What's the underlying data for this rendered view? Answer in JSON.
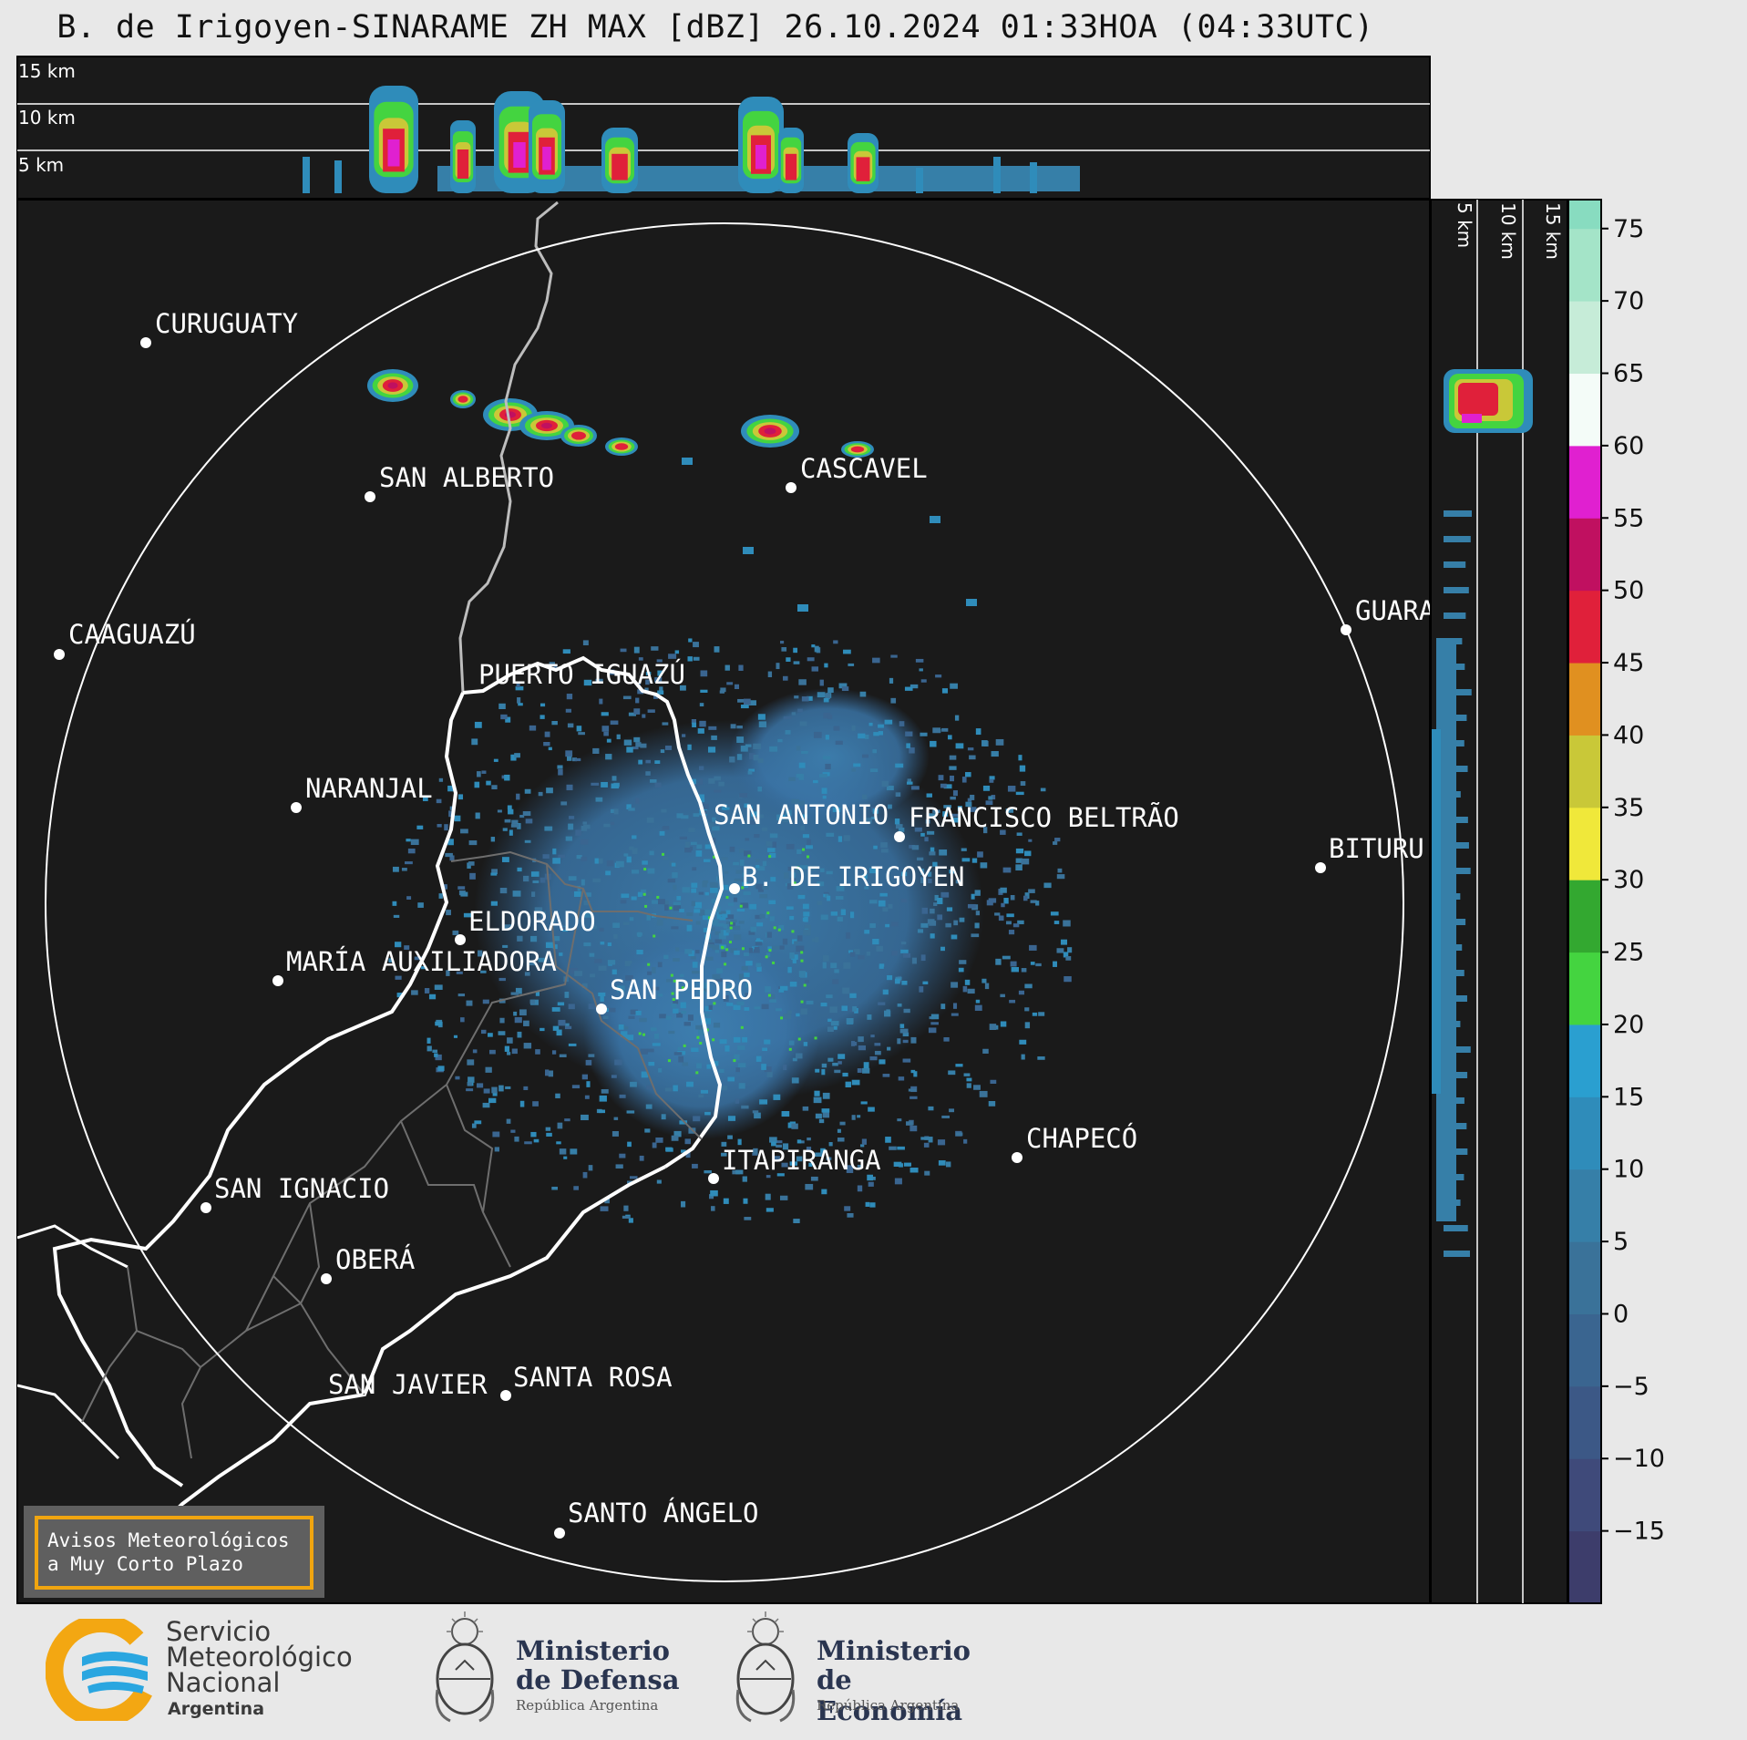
{
  "title": "B. de Irigoyen-SINARAME ZH MAX [dBZ] 26.10.2024 01:33HOA (04:33UTC)",
  "top_panel": {
    "height_labels": [
      "15 km",
      "10 km",
      "5 km"
    ]
  },
  "side_panel": {
    "height_labels": [
      "5 km",
      "10 km",
      "15 km"
    ]
  },
  "cities": [
    {
      "name": "CURUGUATY"
    },
    {
      "name": "SAN ALBERTO"
    },
    {
      "name": "CASCAVEL"
    },
    {
      "name": "CAAGUAZÚ"
    },
    {
      "name": "GUARA"
    },
    {
      "name": "PUERTO IGUAZÚ"
    },
    {
      "name": "NARANJAL"
    },
    {
      "name": "SAN ANTONIO"
    },
    {
      "name": "FRANCISCO BELTRÃO"
    },
    {
      "name": "BITURU"
    },
    {
      "name": "B. DE IRIGOYEN"
    },
    {
      "name": "ELDORADO"
    },
    {
      "name": "MARÍA AUXILIADORA"
    },
    {
      "name": "SAN PEDRO"
    },
    {
      "name": "CHAPECÓ"
    },
    {
      "name": "ITAPIRANGA"
    },
    {
      "name": "SAN IGNACIO"
    },
    {
      "name": "OBERÁ"
    },
    {
      "name": "SAN JAVIER"
    },
    {
      "name": "SANTA ROSA"
    },
    {
      "name": "SANTO ÁNGELO"
    }
  ],
  "colorbar": {
    "ticks": [
      "75",
      "70",
      "65",
      "60",
      "55",
      "50",
      "45",
      "40",
      "35",
      "30",
      "25",
      "20",
      "15",
      "10",
      "5",
      "0",
      "−5",
      "−10",
      "−15"
    ],
    "colors": {
      "-20": "#3d3d6b",
      "-15": "#3f4a7a",
      "-10": "#3c5886",
      "-5": "#3a6590",
      "0": "#3a7299",
      "5": "#367fa8",
      "10": "#2f8cba",
      "15": "#2a9fd0",
      "20": "#44d440",
      "25": "#33a830",
      "30": "#f0e83a",
      "35": "#c9c838",
      "40": "#e09020",
      "45": "#e0203a",
      "50": "#c01060",
      "55": "#e020d0",
      "60": "#f4fcf8",
      "65": "#c6ecd8",
      "70": "#a4e4c8",
      "75": "#88dcc0"
    }
  },
  "warning_box": {
    "line1": "Avisos Meteorológicos",
    "line2": "a Muy Corto Plazo"
  },
  "logos": {
    "smn": {
      "line1": "Servicio",
      "line2": "Meteorológico",
      "line3": "Nacional",
      "line4": "Argentina"
    },
    "defensa": {
      "line1": "Ministerio",
      "line2": "de Defensa",
      "line3": "República Argentina"
    },
    "economia": {
      "line1": "Ministerio",
      "line2": "de Economía",
      "line3": "República Argentina"
    }
  }
}
